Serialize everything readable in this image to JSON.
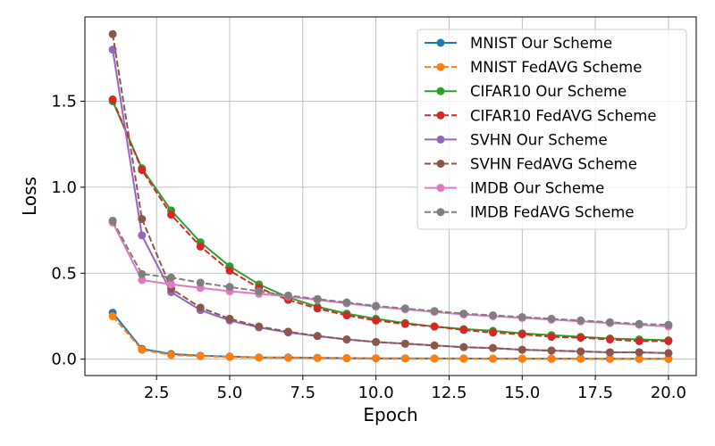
{
  "chart_data": {
    "type": "line",
    "title": "",
    "xlabel": "Epoch",
    "ylabel": "Loss",
    "xlim": [
      0.05,
      20.95
    ],
    "ylim": [
      -0.095,
      1.99
    ],
    "xticks": [
      2.5,
      5.0,
      7.5,
      10.0,
      12.5,
      15.0,
      17.5,
      20.0
    ],
    "xtick_labels": [
      "2.5",
      "5.0",
      "7.5",
      "10.0",
      "12.5",
      "15.0",
      "17.5",
      "20.0"
    ],
    "yticks": [
      0.0,
      0.5,
      1.0,
      1.5
    ],
    "ytick_labels": [
      "0.0",
      "0.5",
      "1.0",
      "1.5"
    ],
    "grid": true,
    "legend_position": "top-right",
    "x": [
      1,
      2,
      3,
      4,
      5,
      6,
      7,
      8,
      9,
      10,
      11,
      12,
      13,
      14,
      15,
      16,
      17,
      18,
      19,
      20
    ],
    "series": [
      {
        "name": "MNIST Our Scheme",
        "color": "#1f77b4",
        "dashed": false,
        "values": [
          0.27,
          0.06,
          0.03,
          0.02,
          0.015,
          0.01,
          0.01,
          0.008,
          0.006,
          0.005,
          0.005,
          0.004,
          0.004,
          0.003,
          0.003,
          0.003,
          0.003,
          0.002,
          0.002,
          0.002
        ]
      },
      {
        "name": "MNIST FedAVG Scheme",
        "color": "#ff7f0e",
        "dashed": true,
        "values": [
          0.25,
          0.055,
          0.025,
          0.018,
          0.013,
          0.01,
          0.008,
          0.007,
          0.006,
          0.005,
          0.004,
          0.004,
          0.003,
          0.003,
          0.003,
          0.002,
          0.002,
          0.002,
          0.002,
          0.002
        ]
      },
      {
        "name": "CIFAR10 Our Scheme",
        "color": "#2ca02c",
        "dashed": false,
        "values": [
          1.5,
          1.11,
          0.865,
          0.68,
          0.54,
          0.435,
          0.36,
          0.305,
          0.265,
          0.235,
          0.21,
          0.19,
          0.175,
          0.165,
          0.15,
          0.14,
          0.13,
          0.12,
          0.115,
          0.11
        ]
      },
      {
        "name": "CIFAR10 FedAVG Scheme",
        "color": "#d62728",
        "dashed": true,
        "values": [
          1.51,
          1.1,
          0.84,
          0.655,
          0.515,
          0.415,
          0.345,
          0.295,
          0.255,
          0.225,
          0.205,
          0.19,
          0.17,
          0.155,
          0.145,
          0.13,
          0.125,
          0.115,
          0.105,
          0.105
        ]
      },
      {
        "name": "SVHN Our Scheme",
        "color": "#9467bd",
        "dashed": false,
        "values": [
          1.8,
          0.72,
          0.39,
          0.285,
          0.225,
          0.185,
          0.155,
          0.135,
          0.115,
          0.1,
          0.09,
          0.08,
          0.07,
          0.065,
          0.055,
          0.05,
          0.045,
          0.04,
          0.04,
          0.035
        ]
      },
      {
        "name": "SVHN FedAVG Scheme",
        "color": "#8c564b",
        "dashed": true,
        "values": [
          1.89,
          0.815,
          0.41,
          0.3,
          0.235,
          0.19,
          0.16,
          0.135,
          0.115,
          0.1,
          0.09,
          0.08,
          0.07,
          0.065,
          0.055,
          0.05,
          0.045,
          0.04,
          0.04,
          0.035
        ]
      },
      {
        "name": "IMDB Our Scheme",
        "color": "#e377c2",
        "dashed": false,
        "values": [
          0.795,
          0.46,
          0.435,
          0.415,
          0.395,
          0.38,
          0.365,
          0.345,
          0.325,
          0.305,
          0.29,
          0.275,
          0.26,
          0.25,
          0.24,
          0.23,
          0.22,
          0.21,
          0.2,
          0.19
        ]
      },
      {
        "name": "IMDB FedAVG Scheme",
        "color": "#7f7f7f",
        "dashed": true,
        "values": [
          0.805,
          0.495,
          0.475,
          0.445,
          0.42,
          0.395,
          0.37,
          0.35,
          0.33,
          0.31,
          0.295,
          0.28,
          0.265,
          0.255,
          0.245,
          0.235,
          0.225,
          0.215,
          0.205,
          0.2
        ]
      }
    ]
  }
}
